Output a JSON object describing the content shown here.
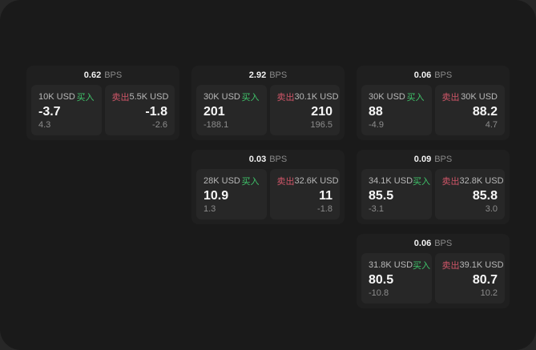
{
  "colors": {
    "backdrop": "#272727",
    "window_bg": "#1a1a1a",
    "card_bg": "#1f1f1f",
    "panel_bg": "#272727",
    "buy_green": "#3fc46a",
    "sell_red": "#d05668",
    "value_white": "#f7f7f7",
    "muted_gray": "#8d8d8d"
  },
  "cards": [
    {
      "bps_value": "0.62",
      "bps_unit": "BPS",
      "buy": {
        "amount": "10K USD",
        "side_label": "买入",
        "value": "-3.7",
        "delta": "4.3"
      },
      "sell": {
        "side_label": "卖出",
        "amount": "5.5K USD",
        "value": "-1.8",
        "delta": "-2.6"
      }
    },
    {
      "bps_value": "2.92",
      "bps_unit": "BPS",
      "buy": {
        "amount": "30K USD",
        "side_label": "买入",
        "value": "201",
        "delta": "-188.1"
      },
      "sell": {
        "side_label": "卖出",
        "amount": "30.1K USD",
        "value": "210",
        "delta": "196.5"
      }
    },
    {
      "bps_value": "0.06",
      "bps_unit": "BPS",
      "buy": {
        "amount": "30K USD",
        "side_label": "买入",
        "value": "88",
        "delta": "-4.9"
      },
      "sell": {
        "side_label": "卖出",
        "amount": "30K USD",
        "value": "88.2",
        "delta": "4.7"
      }
    },
    {
      "bps_value": "0.03",
      "bps_unit": "BPS",
      "buy": {
        "amount": "28K USD",
        "side_label": "买入",
        "value": "10.9",
        "delta": "1.3"
      },
      "sell": {
        "side_label": "卖出",
        "amount": "32.6K USD",
        "value": "11",
        "delta": "-1.8"
      }
    },
    {
      "bps_value": "0.09",
      "bps_unit": "BPS",
      "buy": {
        "amount": "34.1K USD",
        "side_label": "买入",
        "value": "85.5",
        "delta": "-3.1"
      },
      "sell": {
        "side_label": "卖出",
        "amount": "32.8K USD",
        "value": "85.8",
        "delta": "3.0"
      }
    },
    {
      "bps_value": "0.06",
      "bps_unit": "BPS",
      "buy": {
        "amount": "31.8K USD",
        "side_label": "买入",
        "value": "80.5",
        "delta": "-10.8"
      },
      "sell": {
        "side_label": "卖出",
        "amount": "39.1K USD",
        "value": "80.7",
        "delta": "10.2"
      }
    }
  ]
}
